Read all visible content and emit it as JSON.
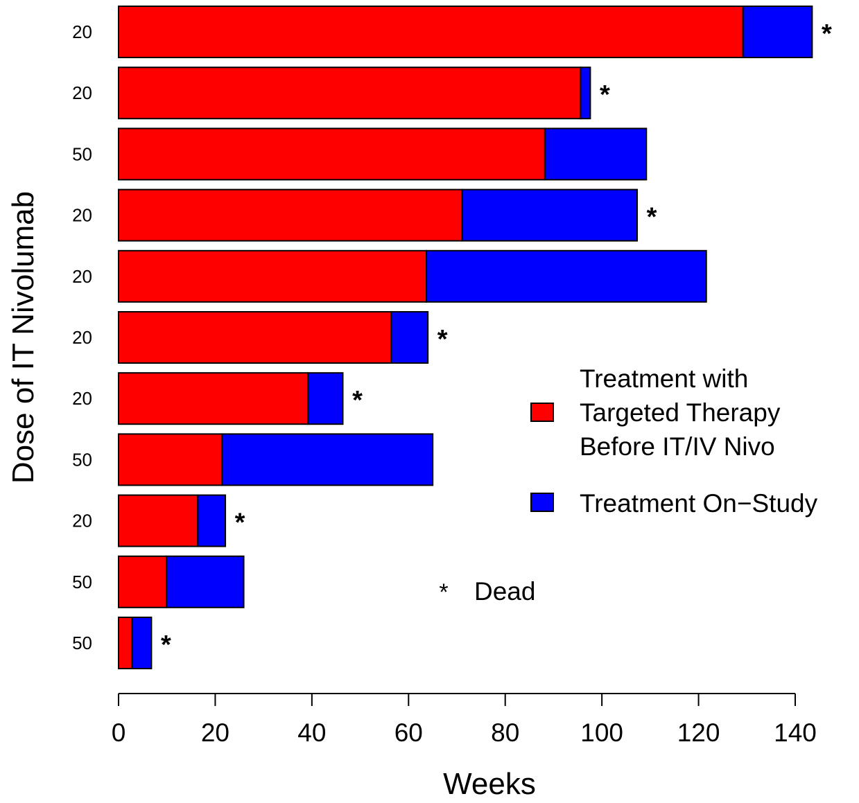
{
  "chart_data": {
    "type": "bar",
    "orientation": "horizontal",
    "stacked": true,
    "xlabel": "Weeks",
    "ylabel": "Dose of IT Nivolumab",
    "xlim": [
      0,
      140
    ],
    "xticks": [
      0,
      20,
      40,
      60,
      80,
      100,
      120,
      140
    ],
    "grid": false,
    "legend_position": "right",
    "categories": [
      "20",
      "20",
      "50",
      "20",
      "20",
      "20",
      "20",
      "50",
      "20",
      "50",
      "50"
    ],
    "series": [
      {
        "name": "Treatment with Targeted Therapy Before IT/IV Nivo",
        "legend_lines": [
          "Treatment with",
          "Targeted Therapy",
          "Before IT/IV Nivo"
        ],
        "color": "#ff0000",
        "values": [
          129.2,
          95.6,
          88.2,
          71.1,
          63.7,
          56.4,
          39.2,
          21.4,
          16.4,
          9.9,
          2.8
        ]
      },
      {
        "name": "Treatment On−Study",
        "legend_lines": [
          "Treatment On−Study"
        ],
        "color": "#0000ff",
        "values": [
          14.3,
          2.0,
          21.0,
          36.2,
          57.9,
          7.6,
          7.2,
          43.6,
          5.7,
          16.0,
          4.0
        ]
      }
    ],
    "dead": [
      true,
      true,
      false,
      true,
      false,
      true,
      true,
      false,
      true,
      false,
      true
    ],
    "dead_marker": "*",
    "dead_legend_label": "Dead"
  }
}
